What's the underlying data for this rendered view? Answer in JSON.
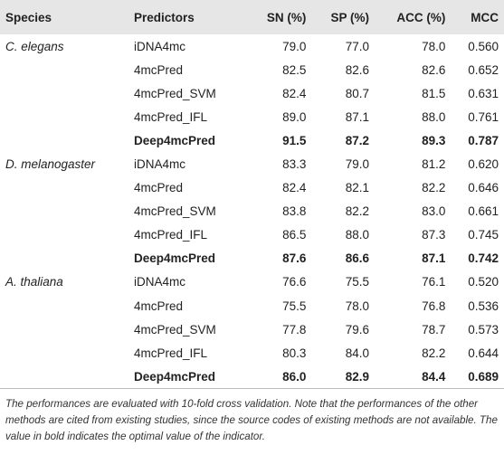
{
  "table": {
    "header": [
      "Species",
      "Predictors",
      "SN (%)",
      "SP (%)",
      "ACC (%)",
      "MCC"
    ],
    "groups": [
      {
        "species": "C. elegans",
        "rows": [
          [
            "iDNA4mc",
            "79.0",
            "77.0",
            "78.0",
            "0.560"
          ],
          [
            "4mcPred",
            "82.5",
            "82.6",
            "82.6",
            "0.652"
          ],
          [
            "4mcPred_SVM",
            "82.4",
            "80.7",
            "81.5",
            "0.631"
          ],
          [
            "4mcPred_IFL",
            "89.0",
            "87.1",
            "88.0",
            "0.761"
          ],
          [
            "Deep4mcPred",
            "91.5",
            "87.2",
            "89.3",
            "0.787"
          ]
        ]
      },
      {
        "species": "D. melanogaster",
        "rows": [
          [
            "iDNA4mc",
            "83.3",
            "79.0",
            "81.2",
            "0.620"
          ],
          [
            "4mcPred",
            "82.4",
            "82.1",
            "82.2",
            "0.646"
          ],
          [
            "4mcPred_SVM",
            "83.8",
            "82.2",
            "83.0",
            "0.661"
          ],
          [
            "4mcPred_IFL",
            "86.5",
            "88.0",
            "87.3",
            "0.745"
          ],
          [
            "Deep4mcPred",
            "87.6",
            "86.6",
            "87.1",
            "0.742"
          ]
        ]
      },
      {
        "species": "A. thaliana",
        "rows": [
          [
            "iDNA4mc",
            "76.6",
            "75.5",
            "76.1",
            "0.520"
          ],
          [
            "4mcPred",
            "75.5",
            "78.0",
            "76.8",
            "0.536"
          ],
          [
            "4mcPred_SVM",
            "77.8",
            "79.6",
            "78.7",
            "0.573"
          ],
          [
            "4mcPred_IFL",
            "80.3",
            "84.0",
            "82.2",
            "0.644"
          ],
          [
            "Deep4mcPred",
            "86.0",
            "82.9",
            "84.4",
            "0.689"
          ]
        ]
      }
    ],
    "note": "The performances are evaluated with 10-fold cross validation. Note that the performances of the other methods are cited from existing studies, since the source codes of existing methods are not available. The value in bold indicates the optimal value of the indicator."
  }
}
